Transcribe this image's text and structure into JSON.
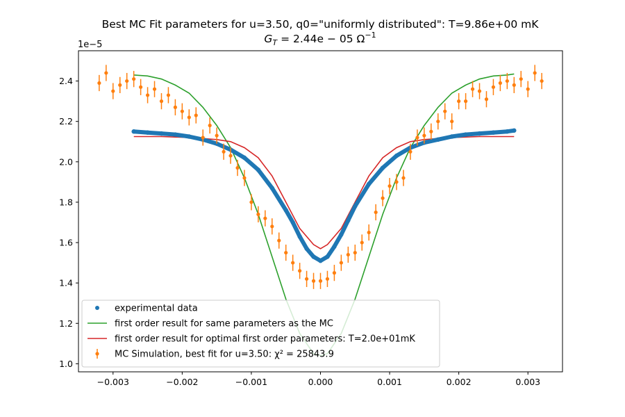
{
  "chart_data": {
    "type": "scatter",
    "title": "Best MC Fit parameters for u=3.50, q0=\"uniformly distributed\":  T=9.86e+00 mK",
    "subtitle": "G_T = 2.44e-05 Ω^-1",
    "subtitle_parts": {
      "g": "G",
      "sub": "T",
      "eq": " = 2.44e − 05 Ω",
      "sup": "−1"
    },
    "xlabel": "",
    "ylabel": "",
    "y_offset_text": "1e−5",
    "xlim": [
      -0.0035,
      0.0035
    ],
    "ylim": [
      0.96,
      2.55
    ],
    "x_ticks": [
      {
        "value": -0.003,
        "label": "−0.003"
      },
      {
        "value": -0.002,
        "label": "−0.002"
      },
      {
        "value": -0.001,
        "label": "−0.001"
      },
      {
        "value": 0.0,
        "label": "0.000"
      },
      {
        "value": 0.001,
        "label": "0.001"
      },
      {
        "value": 0.002,
        "label": "0.002"
      },
      {
        "value": 0.003,
        "label": "0.003"
      }
    ],
    "y_ticks": [
      {
        "value": 1.0,
        "label": "1.0"
      },
      {
        "value": 1.2,
        "label": "1.2"
      },
      {
        "value": 1.4,
        "label": "1.4"
      },
      {
        "value": 1.6,
        "label": "1.6"
      },
      {
        "value": 1.8,
        "label": "1.8"
      },
      {
        "value": 2.0,
        "label": "2.0"
      },
      {
        "value": 2.2,
        "label": "2.2"
      },
      {
        "value": 2.4,
        "label": "2.4"
      }
    ],
    "grid": false,
    "legend_position": "lower-left",
    "colors": {
      "experimental": "#1f77b4",
      "first_order_same": "#2ca02c",
      "first_order_optimal": "#d62728",
      "mc_simulation": "#ff7f0e"
    },
    "legend": [
      {
        "key": "experimental",
        "label": "experimental data",
        "marker": "dot"
      },
      {
        "key": "first_order_same",
        "label": "first order result for same parameters as the MC",
        "marker": "line"
      },
      {
        "key": "first_order_optimal",
        "label": "first order result for optimal first order parameters: T=2.0e+01mK",
        "marker": "line"
      },
      {
        "key": "mc_simulation",
        "label": "MC Simulation, best fit for u=3.50:  χ² = 25843.9",
        "marker": "errorbar"
      }
    ],
    "series": [
      {
        "key": "experimental",
        "kind": "points",
        "x": [
          -0.0027,
          -0.0025,
          -0.0023,
          -0.0021,
          -0.0019,
          -0.0017,
          -0.0015,
          -0.0013,
          -0.0011,
          -0.0009,
          -0.0007,
          -0.0005,
          -0.0004,
          -0.0003,
          -0.0002,
          -0.0001,
          0.0,
          0.0001,
          0.0002,
          0.0003,
          0.0004,
          0.0005,
          0.0007,
          0.0009,
          0.0011,
          0.0013,
          0.0015,
          0.0017,
          0.0019,
          0.0021,
          0.0023,
          0.0025,
          0.0027,
          0.0028
        ],
        "y": [
          2.15,
          2.145,
          2.14,
          2.135,
          2.125,
          2.11,
          2.09,
          2.06,
          2.02,
          1.96,
          1.87,
          1.76,
          1.7,
          1.63,
          1.57,
          1.53,
          1.51,
          1.53,
          1.58,
          1.64,
          1.71,
          1.78,
          1.89,
          1.97,
          2.03,
          2.07,
          2.095,
          2.11,
          2.125,
          2.135,
          2.14,
          2.145,
          2.15,
          2.155
        ]
      },
      {
        "key": "first_order_same",
        "kind": "line",
        "x": [
          -0.0027,
          -0.0025,
          -0.0023,
          -0.0021,
          -0.0019,
          -0.0017,
          -0.0015,
          -0.0013,
          -0.0011,
          -0.0009,
          -0.0007,
          -0.0005,
          -0.0003,
          -0.0001,
          0.0,
          0.0001,
          0.0003,
          0.0005,
          0.0007,
          0.0009,
          0.0011,
          0.0013,
          0.0015,
          0.0017,
          0.0019,
          0.0021,
          0.0023,
          0.0025,
          0.0027,
          0.0028
        ],
        "y": [
          2.43,
          2.425,
          2.41,
          2.38,
          2.34,
          2.27,
          2.18,
          2.07,
          1.92,
          1.74,
          1.53,
          1.32,
          1.15,
          1.05,
          1.04,
          1.05,
          1.15,
          1.32,
          1.53,
          1.74,
          1.92,
          2.07,
          2.18,
          2.27,
          2.34,
          2.38,
          2.41,
          2.425,
          2.43,
          2.435
        ]
      },
      {
        "key": "first_order_optimal",
        "kind": "line",
        "x": [
          -0.0027,
          -0.0023,
          -0.0019,
          -0.0015,
          -0.0013,
          -0.0011,
          -0.0009,
          -0.0007,
          -0.0005,
          -0.0003,
          -0.0001,
          0.0,
          0.0001,
          0.0003,
          0.0005,
          0.0007,
          0.0009,
          0.0011,
          0.0013,
          0.0015,
          0.0019,
          0.0023,
          0.0028
        ],
        "y": [
          2.125,
          2.125,
          2.12,
          2.11,
          2.1,
          2.07,
          2.02,
          1.93,
          1.8,
          1.67,
          1.59,
          1.57,
          1.59,
          1.67,
          1.8,
          1.93,
          2.02,
          2.07,
          2.1,
          2.11,
          2.12,
          2.125,
          2.125
        ]
      },
      {
        "key": "mc_simulation",
        "kind": "errorbar",
        "x": [
          -0.0032,
          -0.0031,
          -0.003,
          -0.0029,
          -0.0028,
          -0.0027,
          -0.0026,
          -0.0025,
          -0.0024,
          -0.0023,
          -0.0022,
          -0.0021,
          -0.002,
          -0.0019,
          -0.0018,
          -0.0017,
          -0.0016,
          -0.0015,
          -0.0014,
          -0.0013,
          -0.0012,
          -0.0011,
          -0.001,
          -0.0009,
          -0.0008,
          -0.0007,
          -0.0006,
          -0.0005,
          -0.0004,
          -0.0003,
          -0.0002,
          -0.0001,
          0.0,
          0.0001,
          0.0002,
          0.0003,
          0.0004,
          0.0005,
          0.0006,
          0.0007,
          0.0008,
          0.0009,
          0.001,
          0.0011,
          0.0012,
          0.0013,
          0.0014,
          0.0015,
          0.0016,
          0.0017,
          0.0018,
          0.0019,
          0.002,
          0.0021,
          0.0022,
          0.0023,
          0.0024,
          0.0025,
          0.0026,
          0.0027,
          0.0028,
          0.0029,
          0.003,
          0.0031,
          0.0032
        ],
        "y": [
          2.39,
          2.44,
          2.35,
          2.38,
          2.4,
          2.41,
          2.37,
          2.33,
          2.36,
          2.3,
          2.33,
          2.27,
          2.25,
          2.22,
          2.23,
          2.12,
          2.18,
          2.13,
          2.05,
          2.03,
          1.97,
          1.92,
          1.8,
          1.74,
          1.72,
          1.68,
          1.61,
          1.55,
          1.5,
          1.46,
          1.42,
          1.41,
          1.41,
          1.42,
          1.45,
          1.5,
          1.54,
          1.55,
          1.6,
          1.65,
          1.75,
          1.82,
          1.88,
          1.9,
          1.92,
          2.05,
          2.12,
          2.13,
          2.15,
          2.2,
          2.25,
          2.2,
          2.3,
          2.3,
          2.36,
          2.35,
          2.31,
          2.37,
          2.39,
          2.4,
          2.38,
          2.41,
          2.36,
          2.44,
          2.4
        ],
        "yerr": 0.04
      }
    ]
  }
}
